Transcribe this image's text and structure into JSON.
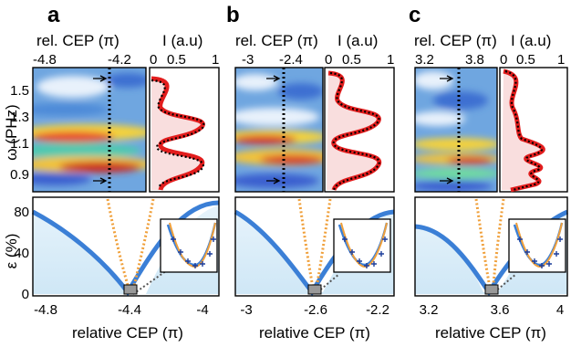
{
  "chart_data": [
    {
      "panel": "a",
      "type": "heatmap",
      "top_xlabel_left": "rel. CEP (π)",
      "top_xlabel_right": "I (a.u)",
      "ylabel": "ω (PHz)",
      "xticks_top": [
        "-4.8",
        "-4.2"
      ],
      "intensity_ticks": [
        "0",
        "0.5",
        "1"
      ],
      "yticks": [
        "1.5",
        "1.3",
        "1.1",
        "0.9"
      ],
      "ylim": [
        0.85,
        1.55
      ],
      "bottom": {
        "type": "line",
        "ylabel": "ε (%)",
        "xlabel": "relative CEP (π)",
        "xticks": [
          "-4.8",
          "-4.4",
          "-4"
        ],
        "yticks": [
          "80",
          "40",
          "0"
        ],
        "xlim": [
          -4.9,
          -3.8
        ],
        "ylim": [
          0,
          90
        ],
        "min_x": -4.4
      }
    },
    {
      "panel": "b",
      "type": "heatmap",
      "top_xlabel_left": "rel. CEP (π)",
      "top_xlabel_right": "I (a.u)",
      "xticks_top": [
        "-3",
        "-2.4"
      ],
      "intensity_ticks": [
        "0",
        "0.5",
        "1"
      ],
      "bottom": {
        "type": "line",
        "xlabel": "relative CEP (π)",
        "xticks": [
          "-3",
          "-2.6",
          "-2.2"
        ],
        "xlim": [
          -3.1,
          -2.1
        ],
        "ylim": [
          0,
          90
        ],
        "min_x": -2.7
      }
    },
    {
      "panel": "c",
      "type": "heatmap",
      "top_xlabel_left": "rel. CEP (π)",
      "top_xlabel_right": "I (a.u)",
      "xticks_top": [
        "3.2",
        "3.8"
      ],
      "intensity_ticks": [
        "0",
        "0.5",
        "1"
      ],
      "bottom": {
        "type": "line",
        "xlabel": "relative CEP (π)",
        "xticks": [
          "3.2",
          "3.6",
          "4"
        ],
        "xlim": [
          3.1,
          4.05
        ],
        "ylim": [
          0,
          90
        ],
        "min_x": 3.55
      }
    }
  ]
}
